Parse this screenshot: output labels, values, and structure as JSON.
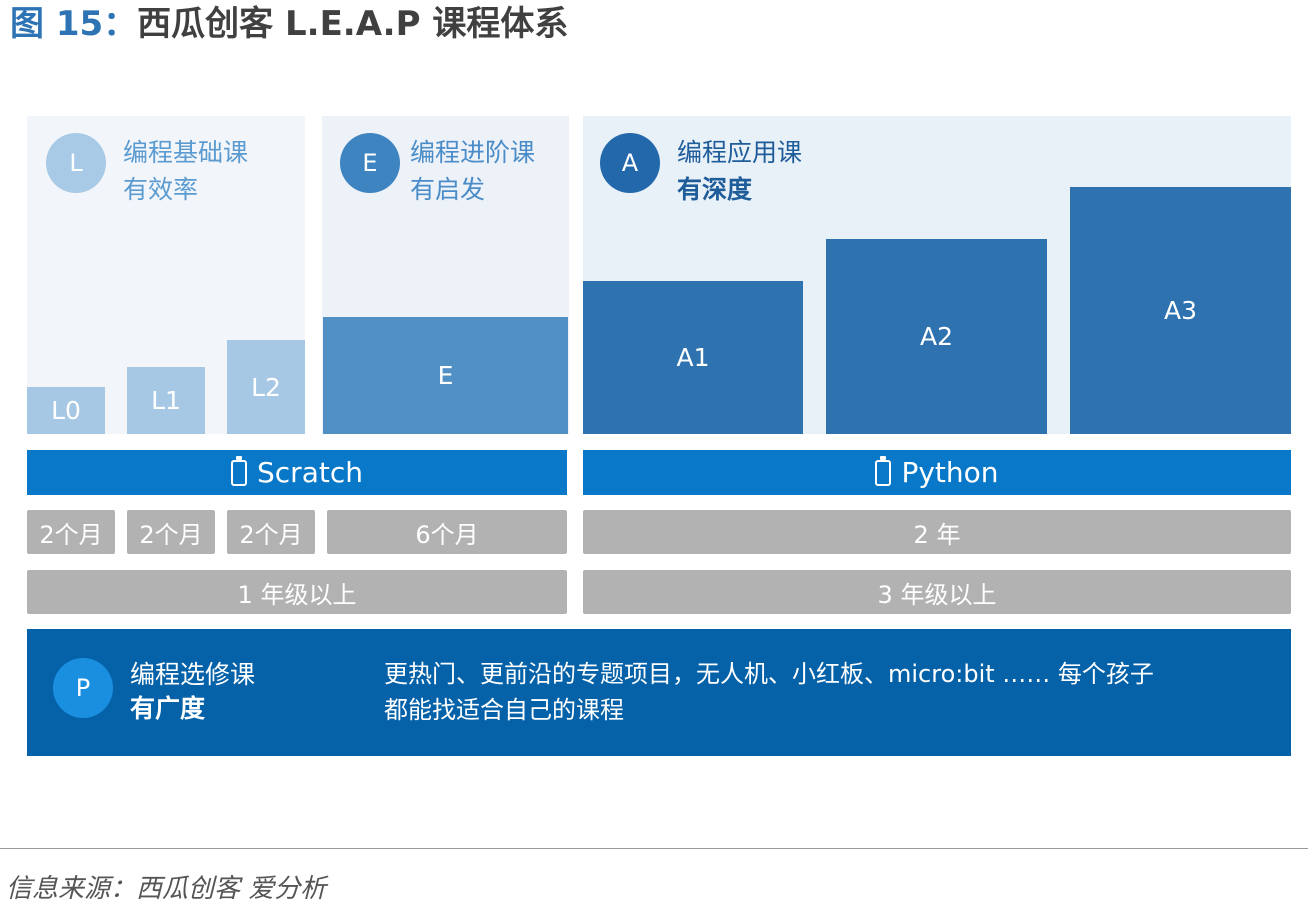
{
  "title": {
    "prefix": "图 15：",
    "main": "西瓜创客 L.E.A.P 课程体系"
  },
  "panels": {
    "L": {
      "badge": "L",
      "title": "编程基础课",
      "subtitle": "有效率",
      "color": "#9dc3e2",
      "text_color": "#5b9bd0"
    },
    "E": {
      "badge": "E",
      "title": "编程进阶课",
      "subtitle": "有启发",
      "color": "#3e84c0",
      "text_color": "#4a8cc8"
    },
    "A": {
      "badge": "A",
      "title": "编程应用课",
      "subtitle": "有深度",
      "color": "#2468ac",
      "text_color": "#1f5c9a"
    }
  },
  "steps": {
    "L0": "L0",
    "L1": "L1",
    "L2": "L2",
    "E": "E",
    "A1": "A1",
    "A2": "A2",
    "A3": "A3"
  },
  "step_colors": {
    "L": "#a6c8e4",
    "E": "#5090c4",
    "A": "#2e73b0"
  },
  "languages": {
    "scratch": "Scratch",
    "python": "Python",
    "bar_color": "#0a78c8"
  },
  "durations": {
    "d1": "2个月",
    "d2": "2个月",
    "d3": "2个月",
    "d4": "6个月",
    "d5": "2 年"
  },
  "grades": {
    "scratch": "1 年级以上",
    "python": "3 年级以上"
  },
  "elective": {
    "badge": "P",
    "title": "编程选修课",
    "subtitle": "有广度",
    "desc_line1": "更热门、更前沿的专题项目，无人机、小红板、micro:bit …… 每个孩子",
    "desc_line2": "都能找适合自己的课程"
  },
  "source": "信息来源：西瓜创客 爱分析"
}
